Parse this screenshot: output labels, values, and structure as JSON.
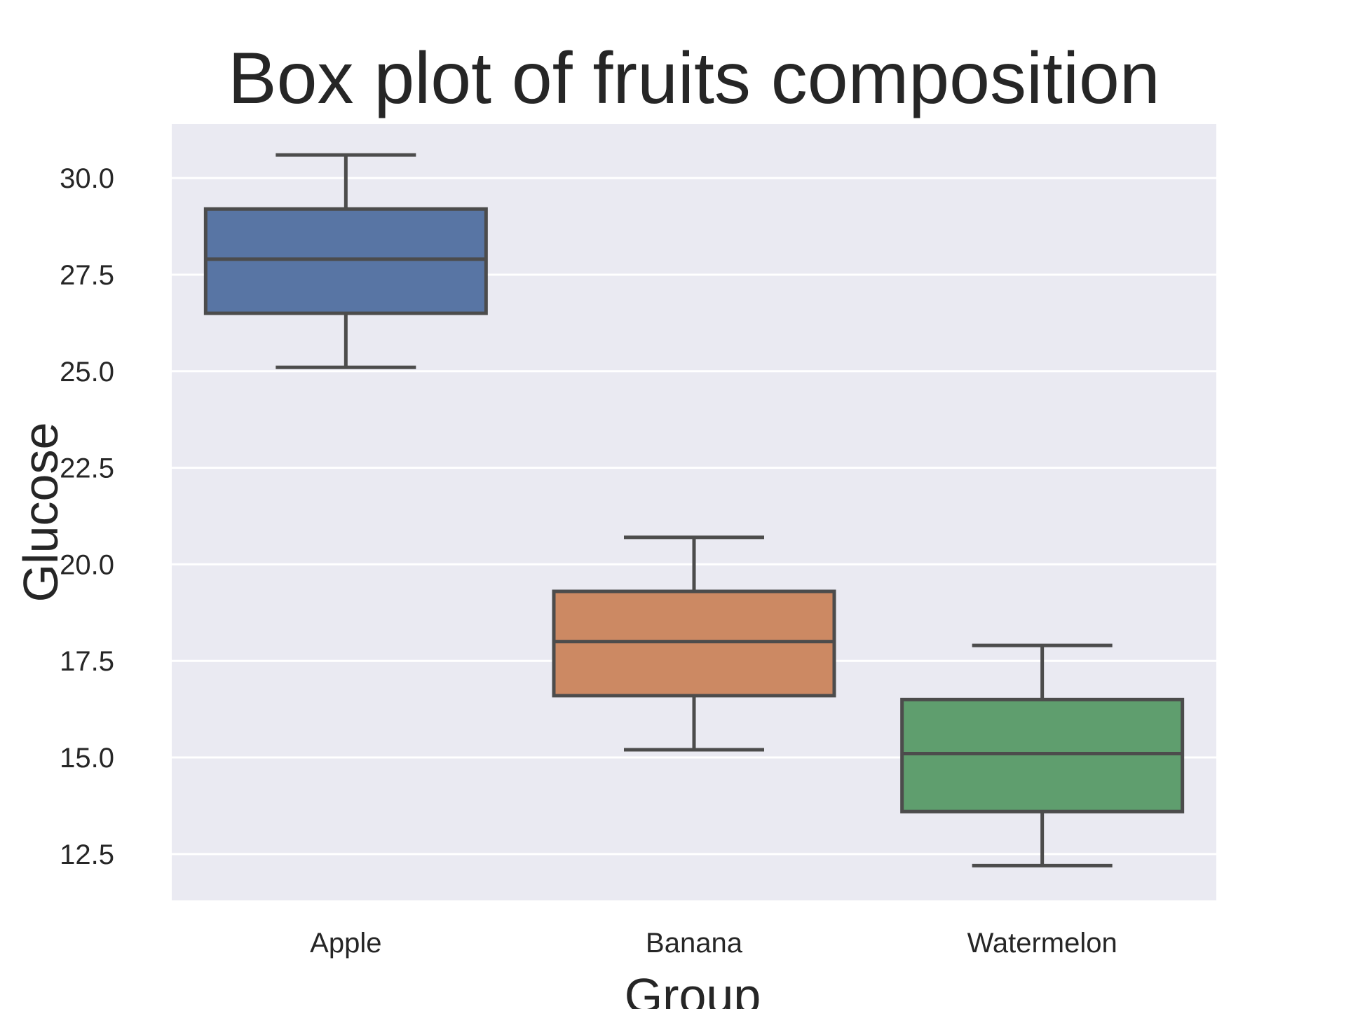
{
  "chart_data": {
    "type": "box",
    "title": "Box plot of fruits composition",
    "xlabel": "Group",
    "ylabel": "Glucose",
    "categories": [
      "Apple",
      "Banana",
      "Watermelon"
    ],
    "boxes": [
      {
        "category": "Apple",
        "whisker_low": 25.1,
        "q1": 26.5,
        "median": 27.9,
        "q3": 29.2,
        "whisker_high": 30.6,
        "color": "#5875a4"
      },
      {
        "category": "Banana",
        "whisker_low": 15.2,
        "q1": 16.6,
        "median": 18.0,
        "q3": 19.3,
        "whisker_high": 20.7,
        "color": "#cc8963"
      },
      {
        "category": "Watermelon",
        "whisker_low": 12.2,
        "q1": 13.6,
        "median": 15.1,
        "q3": 16.5,
        "whisker_high": 17.9,
        "color": "#5f9e6e"
      }
    ],
    "yticks": [
      "12.5",
      "15.0",
      "17.5",
      "20.0",
      "22.5",
      "25.0",
      "27.5",
      "30.0"
    ],
    "ylim": [
      11.3,
      31.4
    ],
    "grid": true,
    "background_color": "#eaeaf2",
    "gridline_color": "#ffffff",
    "line_color": "#4c4c4c"
  }
}
